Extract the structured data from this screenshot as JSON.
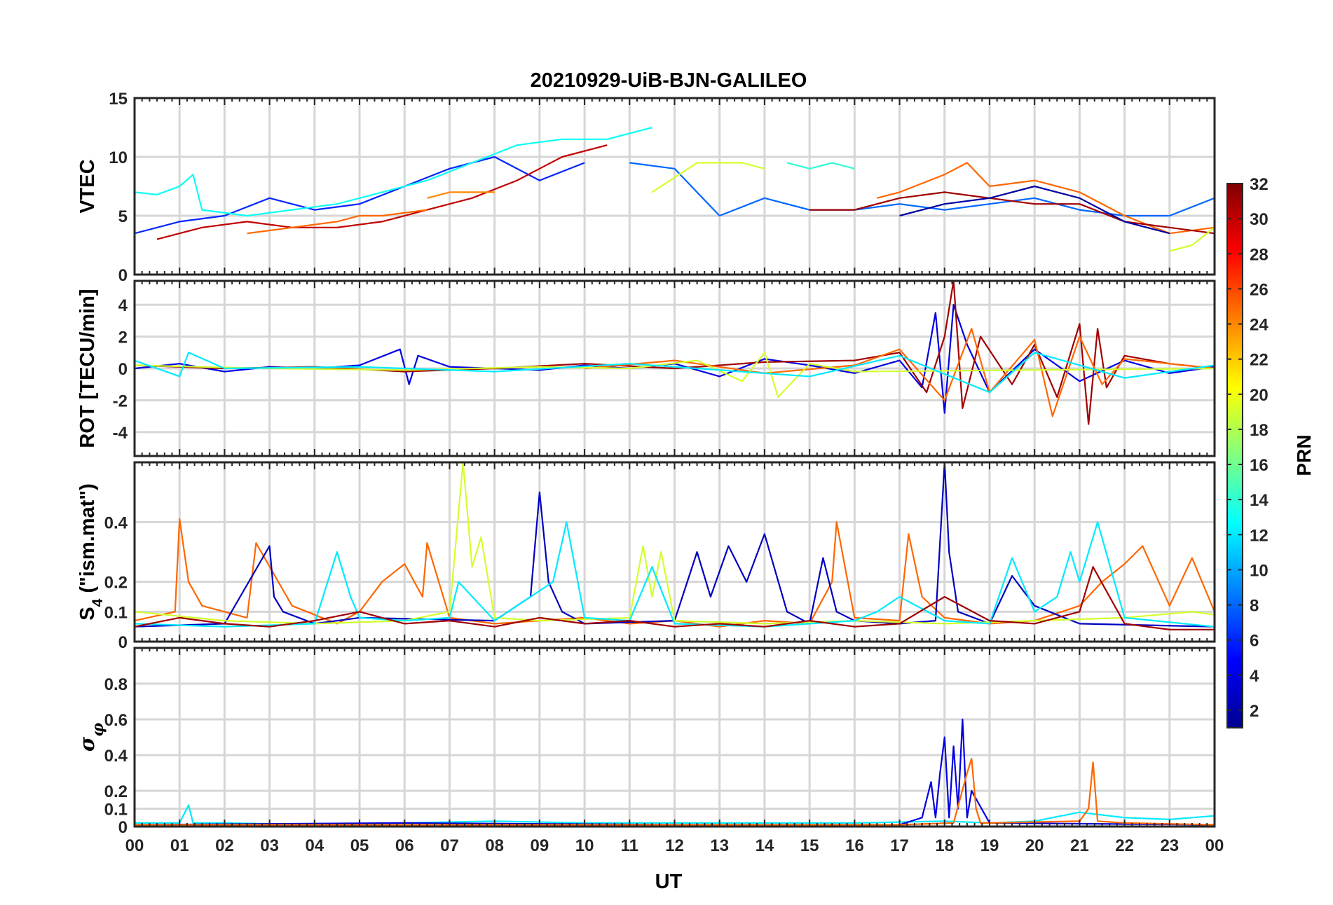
{
  "chart_data": {
    "type": "line",
    "title": "20210929-UiB-BJN-GALILEO",
    "xlabel": "UT",
    "x_tick_labels": [
      "00",
      "01",
      "02",
      "03",
      "04",
      "05",
      "06",
      "07",
      "08",
      "09",
      "10",
      "11",
      "12",
      "13",
      "14",
      "15",
      "16",
      "17",
      "18",
      "19",
      "20",
      "21",
      "22",
      "23",
      "00"
    ],
    "xlim": [
      0,
      24
    ],
    "grid": true,
    "colorbar": {
      "label": "PRN",
      "range": [
        1,
        32
      ],
      "ticks": [
        "2",
        "4",
        "6",
        "8",
        "10",
        "12",
        "14",
        "16",
        "18",
        "20",
        "22",
        "24",
        "26",
        "28",
        "30",
        "32"
      ],
      "colormap": "jet",
      "placement": "right"
    },
    "panels": [
      {
        "ylabel": "VTEC",
        "ylim": [
          0,
          15
        ],
        "yticks": [
          "0",
          "5",
          "10",
          "15"
        ],
        "series": [
          {
            "prn": 6,
            "x": [
              0,
              1,
              2,
              3,
              4,
              5,
              6,
              7,
              8,
              9,
              10
            ],
            "y": [
              3.5,
              4.5,
              5.0,
              6.5,
              5.5,
              6.0,
              7.5,
              9.0,
              10.0,
              8.0,
              9.5
            ]
          },
          {
            "prn": 13,
            "x": [
              0,
              0.5,
              1,
              1.3,
              1.5,
              2.5,
              3.5,
              4.5,
              5.5,
              6.5,
              7.5,
              8.5,
              9.5,
              10.5,
              11.5
            ],
            "y": [
              7.0,
              6.8,
              7.5,
              8.5,
              5.5,
              5.0,
              5.5,
              6.0,
              7.0,
              8.0,
              9.5,
              11.0,
              11.5,
              11.5,
              12.5
            ]
          },
          {
            "prn": 30,
            "x": [
              0.5,
              1.5,
              2.5,
              3.5,
              4.5,
              5.5,
              6.5,
              7.5,
              8.5,
              9.5,
              10.5
            ],
            "y": [
              3.0,
              4.0,
              4.5,
              4.0,
              4.0,
              4.5,
              5.5,
              6.5,
              8.0,
              10.0,
              11.0
            ]
          },
          {
            "prn": 25,
            "x": [
              2.5,
              3.5,
              4.5,
              5.0,
              5.5,
              6.5
            ],
            "y": [
              3.5,
              4.0,
              4.5,
              5.0,
              5.0,
              5.5
            ]
          },
          {
            "prn": 24,
            "x": [
              6.5,
              7.0,
              7.5,
              8.0
            ],
            "y": [
              6.5,
              7.0,
              7.0,
              7.0
            ]
          },
          {
            "prn": 8,
            "x": [
              11,
              12,
              13,
              14,
              15,
              16,
              17,
              18,
              19,
              20,
              21,
              22,
              23,
              24
            ],
            "y": [
              9.5,
              9.0,
              5.0,
              6.5,
              5.5,
              5.5,
              6.0,
              5.5,
              6.0,
              6.5,
              5.5,
              5.0,
              5.0,
              6.5
            ]
          },
          {
            "prn": 19,
            "x": [
              11.5,
              12.5,
              13.5,
              14.0
            ],
            "y": [
              7.0,
              9.5,
              9.5,
              9.0
            ]
          },
          {
            "prn": 14,
            "x": [
              14.5,
              15.0,
              15.5,
              16.0
            ],
            "y": [
              9.5,
              9.0,
              9.5,
              9.0
            ]
          },
          {
            "prn": 25,
            "x": [
              16.5,
              17,
              18,
              18.5,
              19,
              20,
              21,
              22,
              23,
              24
            ],
            "y": [
              6.5,
              7.0,
              8.5,
              9.5,
              7.5,
              8.0,
              7.0,
              5.0,
              3.5,
              4.0
            ]
          },
          {
            "prn": 31,
            "x": [
              15,
              16,
              17,
              18,
              19,
              20,
              21,
              22,
              23,
              24
            ],
            "y": [
              5.5,
              5.5,
              6.5,
              7.0,
              6.5,
              6.0,
              6.0,
              4.5,
              4.0,
              3.5
            ]
          },
          {
            "prn": 2,
            "x": [
              17,
              18,
              19,
              20,
              21,
              22,
              23
            ],
            "y": [
              5.0,
              6.0,
              6.5,
              7.5,
              6.5,
              4.5,
              3.5
            ]
          },
          {
            "prn": 19,
            "x": [
              23.0,
              23.5,
              24.0
            ],
            "y": [
              2.0,
              2.5,
              4.0
            ]
          }
        ]
      },
      {
        "ylabel": "ROT [TECU/min]",
        "ylim": [
          -5.5,
          5.5
        ],
        "yticks": [
          "-4",
          "-2",
          "0",
          "2",
          "4"
        ],
        "series": [
          {
            "prn": 4,
            "x": [
              0,
              1,
              2,
              3,
              4,
              5,
              5.9,
              6.1,
              6.3,
              7,
              8,
              9,
              10,
              11,
              12,
              13,
              14,
              15,
              16,
              17,
              17.5,
              17.8,
              18,
              18.2,
              18.5,
              19,
              20,
              21,
              22,
              23,
              24
            ],
            "y": [
              0,
              0.3,
              -0.2,
              0.1,
              0,
              0.2,
              1.2,
              -1.0,
              0.8,
              0.1,
              0,
              -0.1,
              0.2,
              0,
              0.3,
              -0.5,
              0.6,
              0.2,
              -0.3,
              0.5,
              -1.2,
              3.5,
              -2.8,
              4.0,
              1.5,
              -1.5,
              1.2,
              -0.8,
              0.5,
              -0.3,
              0.1
            ]
          },
          {
            "prn": 31,
            "x": [
              0,
              2,
              4,
              6,
              8,
              10,
              12,
              14,
              16,
              17,
              17.6,
              18.0,
              18.2,
              18.4,
              18.8,
              19.5,
              20,
              20.5,
              21,
              21.2,
              21.4,
              21.6,
              22,
              23,
              24
            ],
            "y": [
              0.2,
              0,
              0.1,
              -0.2,
              0,
              0.3,
              0,
              0.4,
              0.5,
              1.0,
              -1.5,
              2.0,
              5.5,
              -2.5,
              2.0,
              -1.0,
              1.5,
              -1.8,
              2.8,
              -3.5,
              2.5,
              -1.2,
              0.8,
              0.3,
              0
            ]
          },
          {
            "prn": 25,
            "x": [
              10,
              12,
              14,
              16,
              17,
              18,
              18.6,
              19,
              20,
              20.4,
              21,
              21.5,
              22,
              24
            ],
            "y": [
              0,
              0.5,
              -0.3,
              0.2,
              1.2,
              -2.0,
              2.5,
              -1.5,
              1.8,
              -3.0,
              2.0,
              -1.0,
              0.6,
              0
            ]
          },
          {
            "prn": 19,
            "x": [
              0,
              3,
              6,
              7.5,
              9,
              11,
              12.5,
              13.5,
              14,
              14.3,
              15,
              16,
              24
            ],
            "y": [
              0.2,
              0,
              -0.1,
              0,
              0.1,
              0,
              0.5,
              -0.8,
              1.0,
              -1.8,
              0.3,
              -0.2,
              0
            ]
          },
          {
            "prn": 12,
            "x": [
              0,
              1,
              1.2,
              2,
              5,
              8,
              11,
              15,
              17,
              19,
              20,
              22,
              24
            ],
            "y": [
              0.5,
              -0.5,
              1.0,
              0,
              0.1,
              -0.2,
              0.3,
              -0.5,
              0.8,
              -1.5,
              1.0,
              -0.6,
              0.2
            ]
          }
        ]
      },
      {
        "ylabel": "S4 (\"ism.mat\")",
        "ylim": [
          0,
          0.6
        ],
        "yticks": [
          "0",
          "0.1",
          "0.2",
          "0.4"
        ],
        "series": [
          {
            "prn": 25,
            "x": [
              0,
              0.9,
              1.0,
              1.2,
              1.5,
              2.5,
              2.7,
              3.5,
              4.5,
              5.0,
              5.5,
              6.0,
              6.4,
              6.5,
              7,
              8,
              9,
              10,
              11,
              12,
              13,
              14,
              15,
              15.5,
              15.6,
              16,
              17,
              17.2,
              17.5,
              18,
              19,
              20,
              21,
              21.5,
              22,
              22.4,
              23,
              23.5,
              24
            ],
            "y": [
              0.07,
              0.1,
              0.41,
              0.2,
              0.12,
              0.08,
              0.33,
              0.12,
              0.06,
              0.1,
              0.2,
              0.26,
              0.15,
              0.33,
              0.08,
              0.06,
              0.07,
              0.08,
              0.06,
              0.07,
              0.05,
              0.07,
              0.06,
              0.2,
              0.4,
              0.08,
              0.07,
              0.36,
              0.15,
              0.08,
              0.06,
              0.07,
              0.12,
              0.2,
              0.26,
              0.32,
              0.12,
              0.28,
              0.1
            ]
          },
          {
            "prn": 3,
            "x": [
              0,
              2,
              3.0,
              3.1,
              3.3,
              4,
              5,
              8,
              8.8,
              9.0,
              9.2,
              9.5,
              10,
              12,
              12.5,
              12.8,
              13.2,
              13.6,
              14.0,
              14.5,
              15.0,
              15.3,
              15.6,
              16,
              17,
              17.8,
              18.0,
              18.1,
              18.3,
              19,
              19.5,
              20,
              21,
              24
            ],
            "y": [
              0.05,
              0.06,
              0.32,
              0.15,
              0.1,
              0.06,
              0.08,
              0.07,
              0.15,
              0.5,
              0.2,
              0.1,
              0.06,
              0.07,
              0.3,
              0.15,
              0.32,
              0.2,
              0.36,
              0.1,
              0.06,
              0.28,
              0.1,
              0.07,
              0.06,
              0.07,
              0.6,
              0.3,
              0.1,
              0.06,
              0.22,
              0.12,
              0.06,
              0.05
            ]
          },
          {
            "prn": 19,
            "x": [
              0,
              2,
              4,
              6,
              7.0,
              7.3,
              7.5,
              7.7,
              8,
              9,
              11,
              11.3,
              11.5,
              11.7,
              12,
              14,
              16,
              18,
              20,
              22,
              23.5,
              24
            ],
            "y": [
              0.1,
              0.07,
              0.06,
              0.07,
              0.1,
              0.6,
              0.25,
              0.35,
              0.08,
              0.07,
              0.08,
              0.32,
              0.15,
              0.3,
              0.07,
              0.06,
              0.07,
              0.06,
              0.07,
              0.08,
              0.1,
              0.09
            ]
          },
          {
            "prn": 12,
            "x": [
              0,
              2,
              4,
              4.5,
              4.8,
              5,
              6,
              7,
              7.2,
              8,
              9.3,
              9.6,
              10,
              11,
              11.5,
              12,
              14,
              15,
              16,
              16.5,
              17,
              18,
              19,
              19.5,
              20,
              20.5,
              20.8,
              21,
              21.4,
              22,
              24
            ],
            "y": [
              0.06,
              0.05,
              0.06,
              0.3,
              0.15,
              0.08,
              0.07,
              0.08,
              0.2,
              0.07,
              0.2,
              0.4,
              0.08,
              0.07,
              0.25,
              0.06,
              0.05,
              0.06,
              0.07,
              0.1,
              0.15,
              0.07,
              0.06,
              0.28,
              0.1,
              0.15,
              0.3,
              0.2,
              0.4,
              0.08,
              0.05
            ]
          },
          {
            "prn": 31,
            "x": [
              0,
              1,
              2,
              3,
              4,
              5,
              6,
              7,
              8,
              9,
              10,
              11,
              12,
              13,
              14,
              15,
              16,
              17,
              18,
              19,
              20,
              21,
              21.3,
              22,
              23,
              24
            ],
            "y": [
              0.05,
              0.08,
              0.06,
              0.05,
              0.07,
              0.1,
              0.06,
              0.07,
              0.05,
              0.08,
              0.06,
              0.07,
              0.05,
              0.06,
              0.05,
              0.07,
              0.05,
              0.06,
              0.15,
              0.07,
              0.06,
              0.1,
              0.25,
              0.06,
              0.04,
              0.04
            ]
          }
        ]
      },
      {
        "ylabel": "σφ",
        "ylim": [
          0,
          1.0
        ],
        "yticks": [
          "0",
          "0.1",
          "0.2",
          "0.4",
          "0.6",
          "0.8"
        ],
        "series": [
          {
            "prn": 12,
            "x": [
              0,
              1.0,
              1.2,
              1.3,
              2,
              4,
              6,
              8,
              10,
              12,
              14,
              16,
              18,
              19,
              20,
              21,
              22,
              23,
              24
            ],
            "y": [
              0.02,
              0.02,
              0.12,
              0.02,
              0.02,
              0.01,
              0.02,
              0.03,
              0.02,
              0.02,
              0.02,
              0.02,
              0.03,
              0.02,
              0.03,
              0.08,
              0.05,
              0.04,
              0.06
            ]
          },
          {
            "prn": 4,
            "x": [
              0,
              6,
              12,
              17,
              17.5,
              17.7,
              17.8,
              17.9,
              18.0,
              18.1,
              18.2,
              18.3,
              18.4,
              18.5,
              18.6,
              19,
              24
            ],
            "y": [
              0.01,
              0.02,
              0.01,
              0.01,
              0.05,
              0.25,
              0.05,
              0.3,
              0.5,
              0.05,
              0.45,
              0.1,
              0.6,
              0.05,
              0.2,
              0.02,
              0.01
            ]
          },
          {
            "prn": 25,
            "x": [
              0,
              6,
              12,
              17,
              18.2,
              18.5,
              18.6,
              18.7,
              18.8,
              19,
              21.0,
              21.2,
              21.3,
              21.4,
              22,
              24
            ],
            "y": [
              0.01,
              0.01,
              0.01,
              0.01,
              0.02,
              0.3,
              0.38,
              0.1,
              0.02,
              0.02,
              0.03,
              0.1,
              0.36,
              0.03,
              0.02,
              0.01
            ]
          }
        ]
      }
    ]
  }
}
